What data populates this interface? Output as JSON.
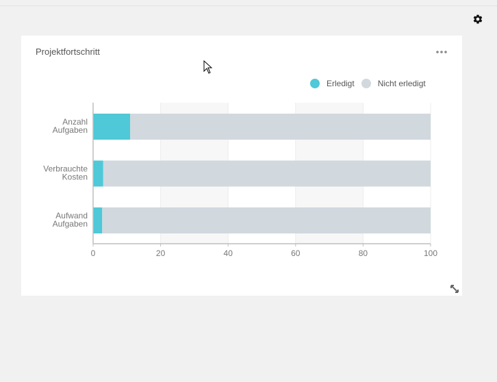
{
  "card": {
    "title": "Projektfortschritt"
  },
  "icons": {
    "settings": "gear-icon",
    "menu": "more-horizontal-icon",
    "resize": "resize-icon",
    "cursor": "mouse-pointer-icon"
  },
  "colors": {
    "done": "#4fc8d7",
    "not_done": "#d1d8de",
    "band": "#f7f7f7"
  },
  "chart_data": {
    "type": "bar",
    "orientation": "horizontal",
    "stacked": true,
    "categories": [
      [
        "Anzahl",
        "Aufgaben"
      ],
      [
        "Verbrauchte",
        "Kosten"
      ],
      [
        "Aufwand",
        "Aufgaben"
      ]
    ],
    "series": [
      {
        "name": "Erledigt",
        "values": [
          11,
          3,
          2.7
        ]
      },
      {
        "name": "Nicht erledigt",
        "values": [
          89,
          97,
          97.3
        ]
      }
    ],
    "xticks": [
      "0",
      "20",
      "40",
      "60",
      "80",
      "100"
    ],
    "xlim": [
      0,
      100
    ],
    "legend_position": "top-right",
    "grid": true
  }
}
